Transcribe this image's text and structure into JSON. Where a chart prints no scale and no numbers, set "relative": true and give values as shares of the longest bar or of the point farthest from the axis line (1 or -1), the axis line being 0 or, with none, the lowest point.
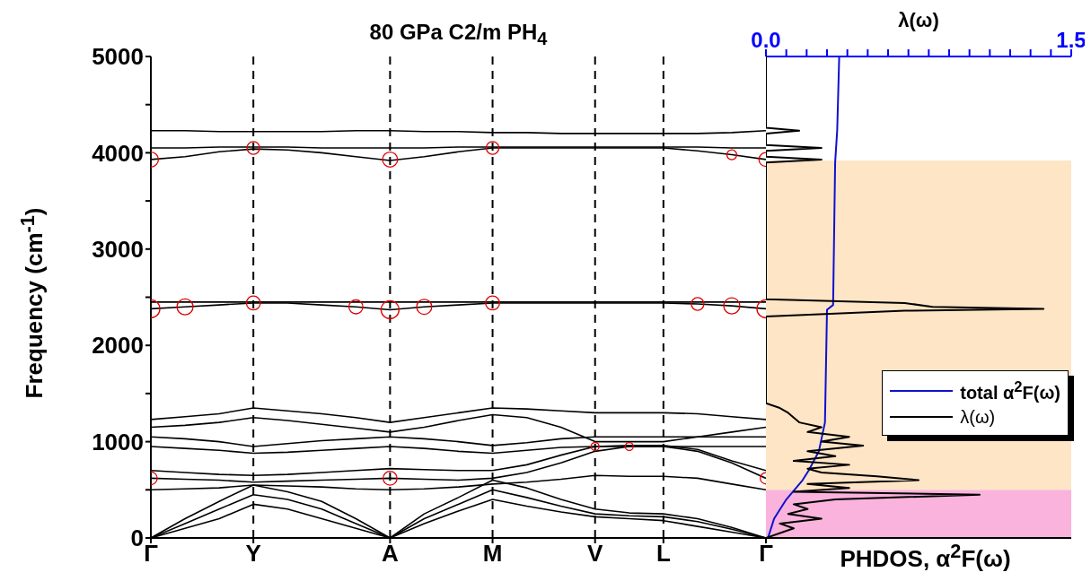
{
  "chart_data": [
    {
      "type": "line",
      "title": "80 GPa C2/m PH$_{4}$",
      "ylabel": "Frequency (cm$^{-1}$)",
      "categories": [
        "Γ",
        null,
        null,
        "Y",
        null,
        null,
        null,
        "A",
        null,
        null,
        "M",
        null,
        null,
        "V",
        null,
        "L",
        null,
        null,
        "Γ"
      ],
      "ylim": [
        0,
        5000
      ],
      "yticks": [
        0,
        {
          "value": 500,
          "label": null
        },
        1000,
        {
          "value": 1500,
          "label": null
        },
        2000,
        {
          "value": 2500,
          "label": null
        },
        3000,
        {
          "value": 3500,
          "label": null
        },
        4000,
        {
          "value": 4500,
          "label": null
        },
        5000
      ],
      "ref_lines": [
        {
          "axis": "x",
          "value": "Y",
          "color": "#000000",
          "line_style": "dashed"
        },
        {
          "axis": "x",
          "value": "A",
          "color": "#000000",
          "line_style": "dashed"
        },
        {
          "axis": "x",
          "value": "M",
          "color": "#000000",
          "line_style": "dashed"
        },
        {
          "axis": "x",
          "value": "V",
          "color": "#000000",
          "line_style": "dashed"
        },
        {
          "axis": "x",
          "value": "L",
          "color": "#000000",
          "line_style": "dashed"
        }
      ],
      "series": [
        {
          "color": "#000000",
          "values": [
            4230,
            4230,
            4220,
            4220,
            4220,
            4220,
            4230,
            4230,
            4220,
            4220,
            4210,
            4210,
            4200,
            4200,
            4200,
            4200,
            4200,
            4210,
            4230
          ]
        },
        {
          "color": "#000000",
          "values": [
            4050,
            4050,
            4060,
            4060,
            4060,
            4050,
            4050,
            4050,
            4050,
            4060,
            4060,
            4060,
            4060,
            4060,
            4060,
            4060,
            4060,
            4050,
            4050
          ]
        },
        {
          "color": "#000000",
          "values": [
            3930,
            3960,
            4010,
            4040,
            4030,
            4000,
            3960,
            3920,
            3960,
            4010,
            4050,
            4050,
            4050,
            4050,
            4050,
            4050,
            4020,
            3980,
            3930
          ]
        },
        {
          "color": "#000000",
          "values": [
            2450,
            2450,
            2450,
            2450,
            2450,
            2450,
            2450,
            2450,
            2450,
            2450,
            2450,
            2450,
            2450,
            2450,
            2450,
            2450,
            2450,
            2450,
            2450
          ]
        },
        {
          "color": "#000000",
          "values": [
            2380,
            2400,
            2420,
            2440,
            2440,
            2420,
            2400,
            2370,
            2400,
            2420,
            2440,
            2440,
            2440,
            2440,
            2440,
            2440,
            2430,
            2410,
            2380
          ]
        },
        {
          "color": "#000000",
          "values": [
            0,
            100,
            200,
            350,
            300,
            200,
            100,
            0,
            150,
            280,
            400,
            330,
            270,
            220,
            200,
            180,
            120,
            60,
            0
          ]
        },
        {
          "color": "#000000",
          "values": [
            0,
            150,
            300,
            450,
            400,
            300,
            150,
            0,
            200,
            350,
            500,
            420,
            330,
            250,
            230,
            220,
            170,
            90,
            0
          ]
        },
        {
          "color": "#000000",
          "values": [
            0,
            200,
            380,
            550,
            480,
            380,
            200,
            0,
            250,
            420,
            600,
            520,
            400,
            300,
            260,
            250,
            200,
            110,
            0
          ]
        },
        {
          "color": "#000000",
          "values": [
            500,
            510,
            520,
            550,
            540,
            530,
            510,
            500,
            510,
            530,
            560,
            580,
            610,
            650,
            640,
            640,
            620,
            560,
            500
          ]
        },
        {
          "color": "#000000",
          "values": [
            620,
            610,
            600,
            580,
            590,
            600,
            610,
            620,
            610,
            600,
            620,
            680,
            780,
            900,
            950,
            950,
            900,
            780,
            620
          ]
        },
        {
          "color": "#000000",
          "values": [
            700,
            680,
            660,
            650,
            660,
            680,
            700,
            720,
            710,
            700,
            700,
            760,
            860,
            950,
            960,
            960,
            920,
            800,
            700
          ]
        },
        {
          "color": "#000000",
          "values": [
            950,
            930,
            910,
            880,
            890,
            910,
            930,
            950,
            930,
            900,
            880,
            910,
            940,
            950,
            950,
            950,
            950,
            950,
            950
          ]
        },
        {
          "color": "#000000",
          "values": [
            1050,
            1030,
            1000,
            950,
            980,
            1010,
            1030,
            1050,
            1030,
            1000,
            960,
            990,
            1030,
            1050,
            1050,
            1050,
            1050,
            1050,
            1050
          ]
        },
        {
          "color": "#000000",
          "values": [
            1150,
            1170,
            1200,
            1250,
            1220,
            1180,
            1140,
            1100,
            1150,
            1220,
            1280,
            1250,
            1150,
            1000,
            1000,
            1000,
            1050,
            1100,
            1150
          ]
        },
        {
          "color": "#000000",
          "values": [
            1230,
            1260,
            1290,
            1350,
            1320,
            1290,
            1250,
            1200,
            1250,
            1300,
            1350,
            1340,
            1320,
            1300,
            1300,
            1300,
            1290,
            1260,
            1230
          ]
        },
        {
          "type": "bubble",
          "color": "#e00000",
          "values": [
            3930,
            null,
            null,
            4050,
            null,
            null,
            null,
            3930,
            null,
            null,
            4050,
            null,
            null,
            null,
            null,
            null,
            null,
            3980,
            3930
          ],
          "sizes": [
            0.7,
            null,
            null,
            0.5,
            null,
            null,
            null,
            0.7,
            null,
            null,
            0.5,
            null,
            null,
            null,
            null,
            null,
            null,
            0.3,
            0.6
          ]
        },
        {
          "type": "bubble",
          "color": "#e00000",
          "values": [
            2380,
            2400,
            null,
            2440,
            null,
            null,
            2400,
            2370,
            2400,
            null,
            2440,
            null,
            null,
            null,
            null,
            null,
            2430,
            2410,
            2380
          ],
          "sizes": [
            1,
            0.8,
            null,
            0.6,
            null,
            null,
            0.6,
            1,
            0.7,
            null,
            0.6,
            null,
            null,
            null,
            null,
            null,
            0.5,
            0.8,
            1
          ]
        },
        {
          "type": "bubble",
          "color": "#e00000",
          "values": [
            620,
            null,
            null,
            null,
            null,
            null,
            null,
            620,
            null,
            null,
            null,
            null,
            null,
            950,
            950,
            null,
            null,
            null,
            620
          ],
          "sizes": [
            0.5,
            null,
            null,
            null,
            null,
            null,
            null,
            0.6,
            null,
            null,
            null,
            null,
            null,
            0.2,
            0.2,
            null,
            null,
            null,
            0.4
          ]
        }
      ]
    },
    {
      "type": "line",
      "orientation": "horizontal",
      "relative": true,
      "xlabel": "PHDOS, α$^{2}$F(ω)",
      "x2label": "λ(ω)",
      "ylim": [
        0,
        5000
      ],
      "yticks": [
        0,
        1000,
        2000,
        3000,
        4000,
        5000
      ],
      "x2lim": [
        0,
        1.5
      ],
      "x2ticks": [
        {
          "value": 0,
          "label": "0.0"
        },
        {
          "value": 0.1,
          "label": null
        },
        {
          "value": 0.2,
          "label": null
        },
        {
          "value": 0.3,
          "label": null
        },
        {
          "value": 0.4,
          "label": null
        },
        {
          "value": 0.5,
          "label": null
        },
        {
          "value": 0.6,
          "label": null
        },
        {
          "value": 0.7,
          "label": null
        },
        {
          "value": 0.8,
          "label": null
        },
        {
          "value": 0.9,
          "label": null
        },
        {
          "value": 1.0,
          "label": null
        },
        {
          "value": 1.1,
          "label": null
        },
        {
          "value": 1.2,
          "label": null
        },
        {
          "value": 1.3,
          "label": null
        },
        {
          "value": 1.4,
          "label": null
        },
        {
          "value": 1.5,
          "label": "1.5"
        }
      ],
      "tick_labels": "x",
      "legend": "right",
      "bands": [
        {
          "axis": "y",
          "from": 0,
          "to": 500,
          "color": "#f9b3dc"
        },
        {
          "axis": "y",
          "from": 500,
          "to": 3920,
          "color": "#fde5c6"
        }
      ],
      "series": [
        {
          "name": "total α$^{2}$F(ω)",
          "color": "#1010d0",
          "axis": "x2",
          "x": [
            0,
            200,
            400,
            600,
            700,
            900,
            1200,
            2370,
            2420,
            3900,
            4230,
            5000
          ],
          "values": [
            0.01,
            0.04,
            0.1,
            0.18,
            0.21,
            0.26,
            0.29,
            0.3,
            0.33,
            0.34,
            0.35,
            0.36
          ]
        },
        {
          "name": "λ(ω)",
          "color": "#000000",
          "x": [
            0,
            100,
            150,
            200,
            250,
            300,
            350,
            400,
            450,
            480,
            520,
            560,
            600,
            640,
            680,
            720,
            760,
            800,
            850,
            900,
            960,
            1000,
            1050,
            1100,
            1150,
            1200,
            1250,
            1300,
            1350,
            1400,
            2300,
            2360,
            2380,
            2400,
            2440,
            2480,
            3900,
            3930,
            3960,
            4020,
            4050,
            4080,
            4200,
            4230,
            4260,
            5000
          ],
          "values": [
            0,
            0.1,
            0.05,
            0.2,
            0.08,
            0.15,
            0.1,
            0.25,
            0.77,
            0.1,
            0.3,
            0.15,
            0.55,
            0.4,
            0.2,
            0.15,
            0.3,
            0.1,
            0.25,
            0.15,
            0.35,
            0.2,
            0.3,
            0.15,
            0.2,
            0.12,
            0.1,
            0.08,
            0.05,
            0,
            0,
            0.5,
            1,
            0.6,
            0.5,
            0,
            0,
            0.2,
            0,
            0,
            0.2,
            0,
            0,
            0.12,
            0,
            0
          ]
        }
      ]
    }
  ]
}
